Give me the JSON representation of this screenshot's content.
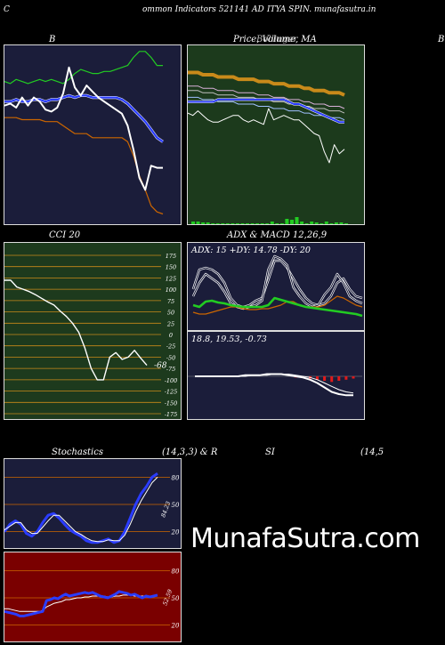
{
  "header": {
    "left_letter": "C",
    "left_text": "ommon  Indicators 521141 AD",
    "right_text": "ITYA SPIN. munafasutra.in"
  },
  "panels": {
    "bollinger": {
      "title": "B",
      "title_right": "",
      "bg": "#1b1d3a"
    },
    "price_ma": {
      "title": "Price,  Volume,  MA",
      "title_overlay": "Bollinger",
      "edge_letter": "B",
      "bg": "#1c3a1c"
    },
    "cci": {
      "title": "CCI 20",
      "value_label": "-68",
      "bg": "#1d3a1d",
      "ticks": [
        "175",
        "150",
        "125",
        "100",
        "75",
        "50",
        "25",
        "0",
        "-25",
        "-50",
        "-75",
        "-100",
        "-125",
        "-150",
        "-175"
      ]
    },
    "adx": {
      "title": "ADX  & MACD 12,26,9",
      "readout": "ADX: 15  +DY: 14.78  -DY: 20",
      "bg": "#1b1d3a"
    },
    "macd": {
      "readout": "18.8,  19.53,  -0.73",
      "bg": "#1b1d3a"
    },
    "stoch": {
      "title_left": "Stochastics",
      "title_mid": "(14,3,3) & R",
      "title_si": "SI",
      "title_right": "(14,5",
      "value_label": "84.23",
      "bg": "#1b1d3a",
      "ticks": [
        "80",
        "50",
        "20"
      ]
    },
    "rsi": {
      "value_label": "52.59",
      "bg": "#7a0000",
      "ticks": [
        "80",
        "50",
        "20"
      ]
    }
  },
  "brand": "MunafaSutra.com",
  "colors": {
    "white": "#ffffff",
    "blue": "#2a3cff",
    "green": "#22cc22",
    "orange": "#cc6600",
    "gold": "#c98a1a",
    "red": "#e0191a"
  },
  "chart_data": [
    {
      "type": "line",
      "name": "Bollinger Bands",
      "series": [
        {
          "name": "upper",
          "values": [
            92,
            91,
            93,
            92,
            91,
            92,
            93,
            92,
            93,
            92,
            91,
            93,
            96,
            98,
            97,
            96,
            96,
            97,
            97,
            98,
            99,
            100,
            104,
            107,
            107,
            104,
            100,
            100
          ]
        },
        {
          "name": "middle",
          "values": [
            82,
            82,
            83,
            82,
            82,
            83,
            83,
            82,
            83,
            83,
            84,
            85,
            84,
            85,
            85,
            84,
            84,
            84,
            84,
            84,
            83,
            81,
            78,
            75,
            72,
            68,
            64,
            62
          ]
        },
        {
          "name": "lower",
          "values": [
            74,
            74,
            74,
            73,
            73,
            73,
            73,
            72,
            72,
            72,
            70,
            68,
            66,
            66,
            66,
            64,
            64,
            64,
            64,
            64,
            64,
            62,
            55,
            45,
            38,
            30,
            27,
            26
          ]
        },
        {
          "name": "price",
          "values": [
            80,
            81,
            79,
            84,
            80,
            84,
            82,
            78,
            77,
            79,
            86,
            99,
            89,
            85,
            90,
            87,
            84,
            82,
            80,
            78,
            76,
            70,
            58,
            44,
            38,
            50,
            49,
            49
          ]
        }
      ]
    },
    {
      "type": "line",
      "name": "Price Volume MA",
      "series": [
        {
          "name": "price",
          "values": [
            70,
            69,
            71,
            69,
            67,
            66,
            66,
            67,
            68,
            69,
            69,
            67,
            66,
            67,
            66,
            65,
            72,
            67,
            68,
            69,
            68,
            67,
            67,
            65,
            63,
            61,
            60,
            53,
            48,
            56,
            52,
            54
          ]
        },
        {
          "name": "ma_orange",
          "values": [
            88,
            88,
            88,
            87,
            87,
            87,
            86,
            86,
            86,
            86,
            85,
            85,
            85,
            85,
            84,
            84,
            84,
            83,
            83,
            83,
            82,
            82,
            82,
            81,
            81,
            80,
            80,
            80,
            79,
            79,
            79,
            78
          ]
        },
        {
          "name": "ma_blue",
          "values": [
            75,
            75,
            75,
            75,
            75,
            75,
            76,
            76,
            76,
            76,
            76,
            76,
            76,
            76,
            76,
            76,
            76,
            76,
            76,
            76,
            75,
            74,
            74,
            73,
            72,
            71,
            70,
            69,
            68,
            67,
            66,
            66
          ]
        }
      ],
      "volume": [
        3,
        3,
        2,
        2,
        1,
        1,
        1,
        1,
        1,
        1,
        1,
        1,
        1,
        1,
        1,
        1,
        3,
        1,
        1,
        6,
        5,
        8,
        3,
        1,
        3,
        2,
        1,
        3,
        1,
        2,
        2,
        1
      ]
    },
    {
      "type": "line",
      "name": "CCI 20",
      "ylim": [
        -175,
        175
      ],
      "series": [
        {
          "name": "cci",
          "values": [
            120,
            120,
            105,
            100,
            95,
            88,
            80,
            72,
            65,
            52,
            40,
            25,
            5,
            -30,
            -75,
            -100,
            -100,
            -50,
            -40,
            -55,
            -50,
            -35,
            -52,
            -68
          ]
        }
      ]
    },
    {
      "type": "line",
      "name": "ADX",
      "series": [
        {
          "name": "plus_dy",
          "values": [
            48,
            70,
            72,
            70,
            65,
            55,
            38,
            30,
            28,
            30,
            35,
            38,
            58,
            80,
            80,
            72,
            60,
            48,
            38,
            32,
            30,
            32,
            40,
            55,
            60,
            48,
            40,
            38
          ]
        },
        {
          "name": "minus_dy",
          "values": [
            40,
            55,
            65,
            60,
            55,
            45,
            32,
            28,
            26,
            28,
            30,
            35,
            70,
            85,
            82,
            75,
            50,
            40,
            32,
            28,
            30,
            42,
            50,
            65,
            55,
            40,
            35,
            32
          ]
        },
        {
          "name": "adx",
          "values": [
            30,
            28,
            34,
            35,
            33,
            32,
            30,
            29,
            28,
            28,
            28,
            28,
            30,
            38,
            36,
            34,
            32,
            30,
            28,
            27,
            26,
            25,
            24,
            23,
            22,
            21,
            20,
            18
          ]
        },
        {
          "name": "orange",
          "values": [
            22,
            20,
            20,
            22,
            24,
            26,
            28,
            28,
            26,
            25,
            25,
            26,
            26,
            28,
            30,
            34,
            34,
            30,
            28,
            28,
            28,
            30,
            35,
            40,
            38,
            34,
            30,
            28
          ]
        }
      ]
    },
    {
      "type": "line",
      "name": "MACD",
      "series": [
        {
          "name": "macd",
          "values": [
            0,
            0,
            0,
            0,
            0,
            0,
            0,
            1,
            1,
            1,
            2,
            2,
            2,
            1,
            0,
            -1,
            -3,
            -6,
            -10,
            -14,
            -16,
            -17,
            -17
          ]
        },
        {
          "name": "signal",
          "values": [
            0,
            0,
            0,
            0,
            0,
            0,
            0,
            0,
            1,
            1,
            1,
            2,
            2,
            2,
            1,
            0,
            -1,
            -3,
            -6,
            -9,
            -12,
            -14,
            -15
          ]
        }
      ]
    },
    {
      "type": "line",
      "name": "Stochastics",
      "ylim": [
        0,
        100
      ],
      "series": [
        {
          "name": "k",
          "values": [
            20,
            28,
            32,
            28,
            18,
            15,
            20,
            30,
            38,
            40,
            35,
            28,
            22,
            18,
            15,
            10,
            8,
            8,
            10,
            12,
            8,
            10,
            20,
            35,
            50,
            62,
            70,
            80,
            84
          ]
        },
        {
          "name": "d",
          "values": [
            22,
            26,
            30,
            30,
            22,
            18,
            18,
            25,
            32,
            38,
            38,
            32,
            26,
            20,
            17,
            13,
            10,
            9,
            9,
            11,
            10,
            10,
            16,
            28,
            42,
            54,
            64,
            74,
            80
          ]
        }
      ]
    },
    {
      "type": "line",
      "name": "RSI",
      "ylim": [
        0,
        100
      ],
      "series": [
        {
          "name": "rsi",
          "values": [
            35,
            34,
            33,
            32,
            30,
            30,
            31,
            32,
            33,
            34,
            35,
            47,
            48,
            50,
            49,
            52,
            54,
            52,
            53,
            54,
            55,
            56,
            55,
            56,
            54,
            52,
            51,
            50,
            52,
            54,
            57,
            56,
            55,
            53,
            54,
            52,
            50,
            52,
            51,
            52,
            53
          ]
        },
        {
          "name": "signal",
          "values": [
            38,
            38,
            37,
            36,
            35,
            35,
            35,
            35,
            35,
            35,
            36,
            40,
            42,
            44,
            45,
            46,
            48,
            48,
            49,
            50,
            50,
            51,
            51,
            52,
            52,
            52,
            52,
            51,
            51,
            52,
            52,
            53,
            53,
            53,
            52,
            52,
            52,
            52,
            52,
            52,
            52
          ]
        }
      ]
    }
  ]
}
